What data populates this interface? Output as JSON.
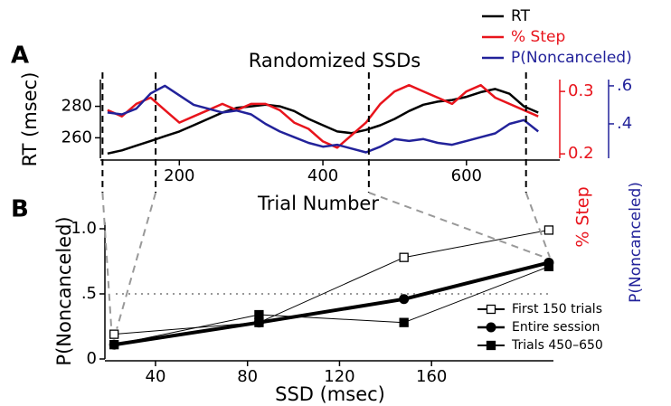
{
  "chart_data": [
    {
      "type": "line",
      "panel_label": "A",
      "title": "Randomized SSDs",
      "xlabel": "Trial Number",
      "ylabel": "RT (msec)",
      "y2label": "% Step",
      "y3label": "P(Noncanceled)",
      "x": [
        100,
        120,
        140,
        160,
        180,
        200,
        220,
        240,
        260,
        280,
        300,
        320,
        340,
        360,
        380,
        400,
        420,
        440,
        460,
        480,
        500,
        520,
        540,
        560,
        580,
        600,
        620,
        640,
        660,
        680,
        700
      ],
      "series": [
        {
          "name": "RT",
          "color": "#000000",
          "axis": "y",
          "values": [
            250,
            252,
            255,
            258,
            261,
            264,
            268,
            272,
            276,
            279,
            280,
            281,
            280,
            277,
            272,
            268,
            264,
            263,
            265,
            268,
            272,
            277,
            281,
            283,
            284,
            286,
            289,
            291,
            288,
            280,
            276
          ]
        },
        {
          "name": "% Step",
          "color": "#e8141c",
          "axis": "y2",
          "values": [
            0.27,
            0.26,
            0.28,
            0.29,
            0.27,
            0.25,
            0.26,
            0.27,
            0.28,
            0.27,
            0.28,
            0.28,
            0.27,
            0.25,
            0.24,
            0.22,
            0.21,
            0.23,
            0.25,
            0.28,
            0.3,
            0.31,
            0.3,
            0.29,
            0.28,
            0.3,
            0.31,
            0.29,
            0.28,
            0.27,
            0.26
          ]
        },
        {
          "name": "P(Noncanceled)",
          "color": "#22229a",
          "axis": "y3",
          "values": [
            0.46,
            0.45,
            0.48,
            0.56,
            0.6,
            0.55,
            0.5,
            0.48,
            0.46,
            0.47,
            0.45,
            0.4,
            0.36,
            0.33,
            0.3,
            0.28,
            0.29,
            0.27,
            0.25,
            0.28,
            0.32,
            0.31,
            0.32,
            0.3,
            0.29,
            0.31,
            0.33,
            0.35,
            0.4,
            0.42,
            0.36
          ]
        }
      ],
      "xlim": [
        90,
        730
      ],
      "xticks": [
        200,
        400,
        600
      ],
      "ylim": [
        247,
        297
      ],
      "yticks": [
        260,
        280
      ],
      "y2lim": [
        0.193,
        0.319
      ],
      "y2ticks": [
        0.2,
        0.3
      ],
      "y3lim": [
        0.219,
        0.633
      ],
      "y3ticks": [
        {
          "value": 0.4,
          "label": ".4"
        },
        {
          "value": 0.6,
          "label": ".6"
        }
      ],
      "x_markers": [
        93,
        167,
        464,
        683
      ],
      "legend": "upper-right"
    },
    {
      "type": "line",
      "panel_label": "B",
      "xlabel": "SSD (msec)",
      "ylabel": "P(Noncanceled)",
      "x": [
        22,
        85,
        148,
        211
      ],
      "series": [
        {
          "name": "First 150 trials",
          "color": "#000000",
          "marker": "square-open",
          "linewidth": 1,
          "values": [
            0.19,
            0.28,
            0.78,
            0.99
          ]
        },
        {
          "name": "Entire session",
          "color": "#000000",
          "marker": "circle",
          "linewidth": 4,
          "values": [
            0.11,
            0.28,
            0.46,
            0.74
          ]
        },
        {
          "name": "Trials 450–650",
          "color": "#000000",
          "marker": "square",
          "linewidth": 1,
          "values": [
            0.11,
            0.34,
            0.28,
            0.71
          ]
        }
      ],
      "xlim": [
        18,
        213
      ],
      "xticks": [
        40,
        80,
        120,
        160
      ],
      "ylim": [
        0,
        1.05
      ],
      "yticks": [
        0,
        {
          "value": 0.5,
          "label": ".5"
        },
        {
          "value": 1,
          "label": "1.0"
        }
      ],
      "hline": 0.5,
      "legend": "lower-right"
    }
  ]
}
